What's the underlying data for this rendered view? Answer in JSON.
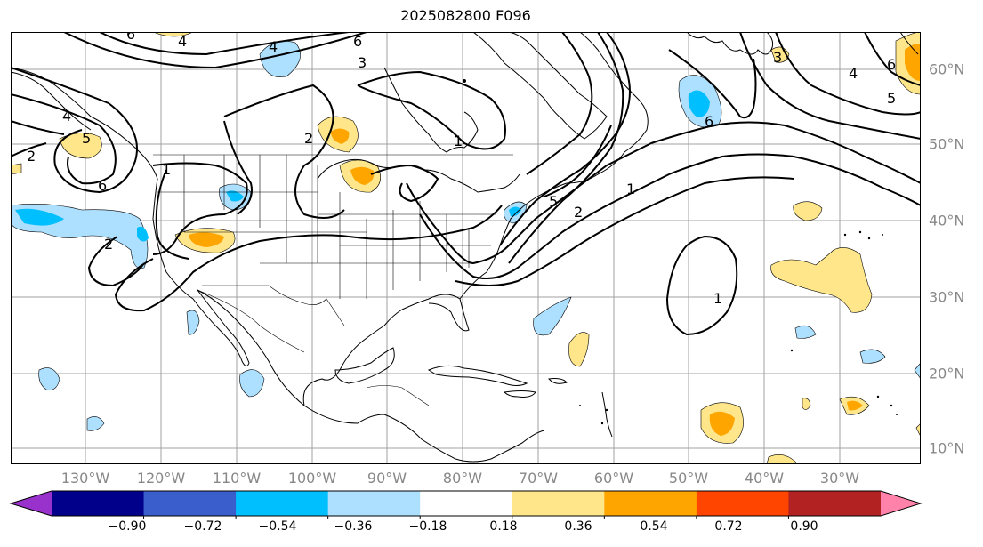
{
  "title": "2025082800 F096",
  "longitude_labels": [
    "130°W",
    "120°W",
    "110°W",
    "100°W",
    "90°W",
    "80°W",
    "70°W",
    "60°W",
    "50°W",
    "40°W",
    "30°W"
  ],
  "latitude_labels": [
    "60°N",
    "50°N",
    "40°N",
    "30°N",
    "20°N",
    "10°N"
  ],
  "colorbar": {
    "tick_labels": [
      "−0.90",
      "−0.72",
      "−0.54",
      "−0.36",
      "−0.18",
      "0.18",
      "0.36",
      "0.54",
      "0.72",
      "0.90"
    ],
    "colors": [
      "#9932CC",
      "#00008B",
      "#3A5FCD",
      "#00BFFF",
      "#ADDFFF",
      "#FFFFFF",
      "#FFE68A",
      "#FFA500",
      "#FF4500",
      "#B22222",
      "#FF82AB"
    ]
  },
  "contour_labels": [
    "1",
    "2",
    "3",
    "4",
    "5",
    "6"
  ],
  "contour_color": "#000000",
  "map_colors": {
    "land_border": "#000000",
    "grid": "#a0a0a0",
    "ocean": "#ffffff"
  }
}
